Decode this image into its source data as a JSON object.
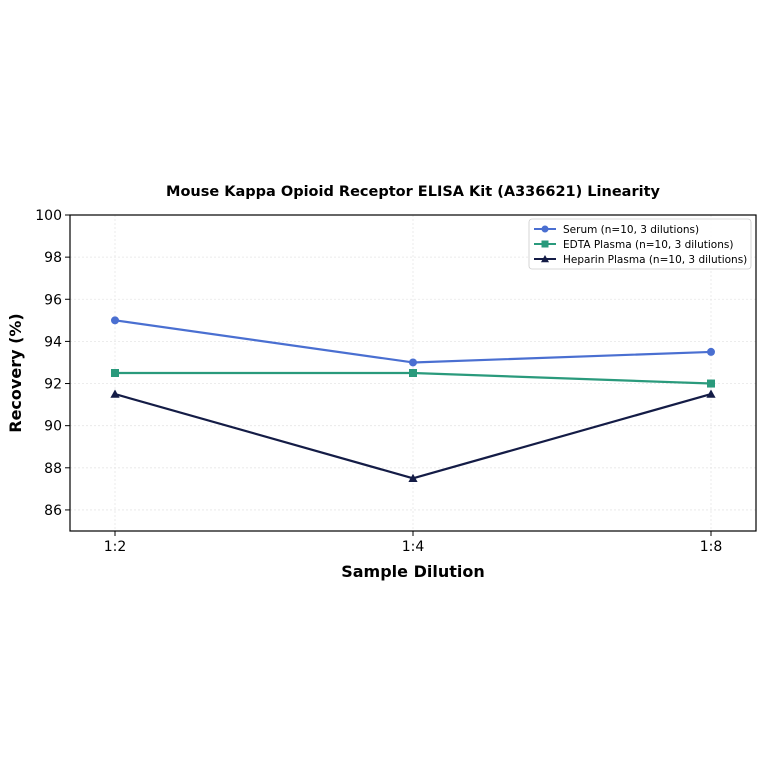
{
  "chart_data": {
    "type": "line",
    "title": "Mouse Kappa Opioid Receptor ELISA Kit (A336621) Linearity",
    "xlabel": "Sample Dilution",
    "ylabel": "Recovery (%)",
    "categories": [
      "1:2",
      "1:4",
      "1:8"
    ],
    "ylim": [
      85,
      100
    ],
    "yticks": [
      86,
      88,
      90,
      92,
      94,
      96,
      98,
      100
    ],
    "grid": true,
    "legend_position": "top-right",
    "series": [
      {
        "name": "Serum (n=10, 3 dilutions)",
        "values": [
          95.0,
          93.0,
          93.5
        ],
        "color": "#4a6fd1",
        "marker": "circle"
      },
      {
        "name": "EDTA Plasma (n=10, 3 dilutions)",
        "values": [
          92.5,
          92.5,
          92.0
        ],
        "color": "#2a9a7c",
        "marker": "square"
      },
      {
        "name": "Heparin Plasma (n=10, 3 dilutions)",
        "values": [
          91.5,
          87.5,
          91.5
        ],
        "color": "#141c46",
        "marker": "triangle"
      }
    ]
  }
}
